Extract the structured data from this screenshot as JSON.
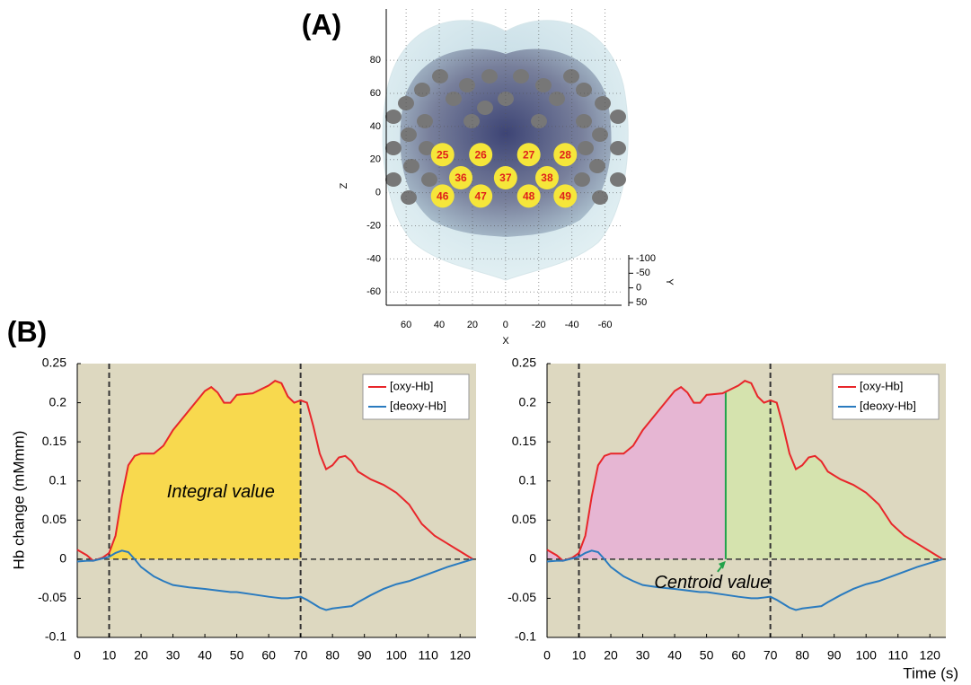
{
  "chart_data": [
    {
      "type": "scatter",
      "title": "(A)",
      "xlabel": "X",
      "ylabel": "Z",
      "x": [
        38,
        15,
        -14,
        -36,
        27,
        0,
        -25,
        38,
        15,
        -14,
        -36
      ],
      "values": [
        23,
        23,
        23,
        23,
        9,
        9,
        9,
        -2,
        -2,
        -2,
        -2
      ],
      "point_labels": [
        "25",
        "26",
        "27",
        "28",
        "36",
        "37",
        "38",
        "46",
        "47",
        "48",
        "49"
      ],
      "color": "#f5e63a",
      "label_color": "#e0201b",
      "xlim": [
        72,
        -70
      ],
      "xticks": [
        60,
        40,
        20,
        0,
        -20,
        -40,
        -60
      ],
      "ylim": [
        -68,
        111
      ],
      "yticks": [
        -60,
        -40,
        -20,
        0,
        20,
        40,
        60,
        80
      ],
      "depth_label": "Y",
      "depth_lim": [
        -100,
        50
      ],
      "depth_ticks": [
        -100,
        -50,
        0,
        50
      ],
      "grid": true
    },
    {
      "type": "line",
      "title": "(B)",
      "ylabel": "Hb change (mMmm)",
      "x": [
        0,
        3,
        5,
        8,
        10,
        12,
        14,
        16,
        18,
        20,
        24,
        27,
        30,
        35,
        40,
        42,
        44,
        46,
        48,
        50,
        55,
        60,
        62,
        64,
        66,
        68,
        70,
        72,
        74,
        76,
        78,
        80,
        82,
        84,
        86,
        88,
        92,
        96,
        100,
        104,
        108,
        112,
        116,
        120,
        124
      ],
      "series": [
        {
          "name": "[oxy-Hb]",
          "color": "#e8262a",
          "values": [
            0.012,
            0.005,
            -0.002,
            0.002,
            0.008,
            0.03,
            0.08,
            0.12,
            0.132,
            0.135,
            0.135,
            0.145,
            0.165,
            0.19,
            0.215,
            0.22,
            0.213,
            0.2,
            0.2,
            0.21,
            0.212,
            0.222,
            0.228,
            0.225,
            0.208,
            0.2,
            0.203,
            0.2,
            0.17,
            0.135,
            0.115,
            0.12,
            0.13,
            0.132,
            0.125,
            0.112,
            0.102,
            0.095,
            0.085,
            0.07,
            0.045,
            0.03,
            0.02,
            0.01,
            0.0
          ]
        },
        {
          "name": "[deoxy-Hb]",
          "color": "#2a7bbf",
          "values": [
            -0.003,
            -0.002,
            -0.002,
            0.001,
            0.003,
            0.008,
            0.011,
            0.009,
            0.0,
            -0.01,
            -0.022,
            -0.028,
            -0.033,
            -0.036,
            -0.038,
            -0.039,
            -0.04,
            -0.041,
            -0.042,
            -0.042,
            -0.045,
            -0.048,
            -0.049,
            -0.05,
            -0.05,
            -0.049,
            -0.048,
            -0.052,
            -0.057,
            -0.062,
            -0.065,
            -0.063,
            -0.062,
            -0.061,
            -0.06,
            -0.055,
            -0.046,
            -0.038,
            -0.032,
            -0.028,
            -0.022,
            -0.016,
            -0.01,
            -0.005,
            0.0
          ]
        }
      ],
      "xlim": [
        0,
        125
      ],
      "xticks": [
        0,
        10,
        20,
        30,
        40,
        50,
        60,
        70,
        80,
        90,
        100,
        110,
        120
      ],
      "ylim": [
        -0.1,
        0.25
      ],
      "yticks": [
        -0.1,
        -0.05,
        0,
        0.05,
        0.1,
        0.15,
        0.2,
        0.25
      ],
      "vlines": [
        10,
        70
      ],
      "shade": [
        {
          "from": 10,
          "to": 70,
          "color": "#f8d94e"
        }
      ],
      "annotation": "Integral value",
      "legend": "upper right",
      "background": "#ddd8c0"
    },
    {
      "type": "line",
      "xlabel": "Time (s)",
      "x": [
        0,
        3,
        5,
        8,
        10,
        12,
        14,
        16,
        18,
        20,
        24,
        27,
        30,
        35,
        40,
        42,
        44,
        46,
        48,
        50,
        55,
        60,
        62,
        64,
        66,
        68,
        70,
        72,
        74,
        76,
        78,
        80,
        82,
        84,
        86,
        88,
        92,
        96,
        100,
        104,
        108,
        112,
        116,
        120,
        124
      ],
      "series": [
        {
          "name": "[oxy-Hb]",
          "color": "#e8262a",
          "values": [
            0.012,
            0.005,
            -0.002,
            0.002,
            0.008,
            0.03,
            0.08,
            0.12,
            0.132,
            0.135,
            0.135,
            0.145,
            0.165,
            0.19,
            0.215,
            0.22,
            0.213,
            0.2,
            0.2,
            0.21,
            0.212,
            0.222,
            0.228,
            0.225,
            0.208,
            0.2,
            0.203,
            0.2,
            0.17,
            0.135,
            0.115,
            0.12,
            0.13,
            0.132,
            0.125,
            0.112,
            0.102,
            0.095,
            0.085,
            0.07,
            0.045,
            0.03,
            0.02,
            0.01,
            0.0
          ]
        },
        {
          "name": "[deoxy-Hb]",
          "color": "#2a7bbf",
          "values": [
            -0.003,
            -0.002,
            -0.002,
            0.001,
            0.003,
            0.008,
            0.011,
            0.009,
            0.0,
            -0.01,
            -0.022,
            -0.028,
            -0.033,
            -0.036,
            -0.038,
            -0.039,
            -0.04,
            -0.041,
            -0.042,
            -0.042,
            -0.045,
            -0.048,
            -0.049,
            -0.05,
            -0.05,
            -0.049,
            -0.048,
            -0.052,
            -0.057,
            -0.062,
            -0.065,
            -0.063,
            -0.062,
            -0.061,
            -0.06,
            -0.055,
            -0.046,
            -0.038,
            -0.032,
            -0.028,
            -0.022,
            -0.016,
            -0.01,
            -0.005,
            0.0
          ]
        }
      ],
      "xlim": [
        0,
        125
      ],
      "xticks": [
        0,
        10,
        20,
        30,
        40,
        50,
        60,
        70,
        80,
        90,
        100,
        110,
        120
      ],
      "ylim": [
        -0.1,
        0.25
      ],
      "yticks": [
        -0.1,
        -0.05,
        0,
        0.05,
        0.1,
        0.15,
        0.2,
        0.25
      ],
      "vlines": [
        10,
        70
      ],
      "shade": [
        {
          "from": 0,
          "to": 56,
          "color": "#e6b6d3"
        },
        {
          "from": 56,
          "to": 124,
          "color": "#d5e3ae"
        }
      ],
      "centroid": 56,
      "centroid_color": "#22a24a",
      "annotation": "Centroid value",
      "legend": "upper right",
      "background": "#ddd8c0"
    }
  ]
}
